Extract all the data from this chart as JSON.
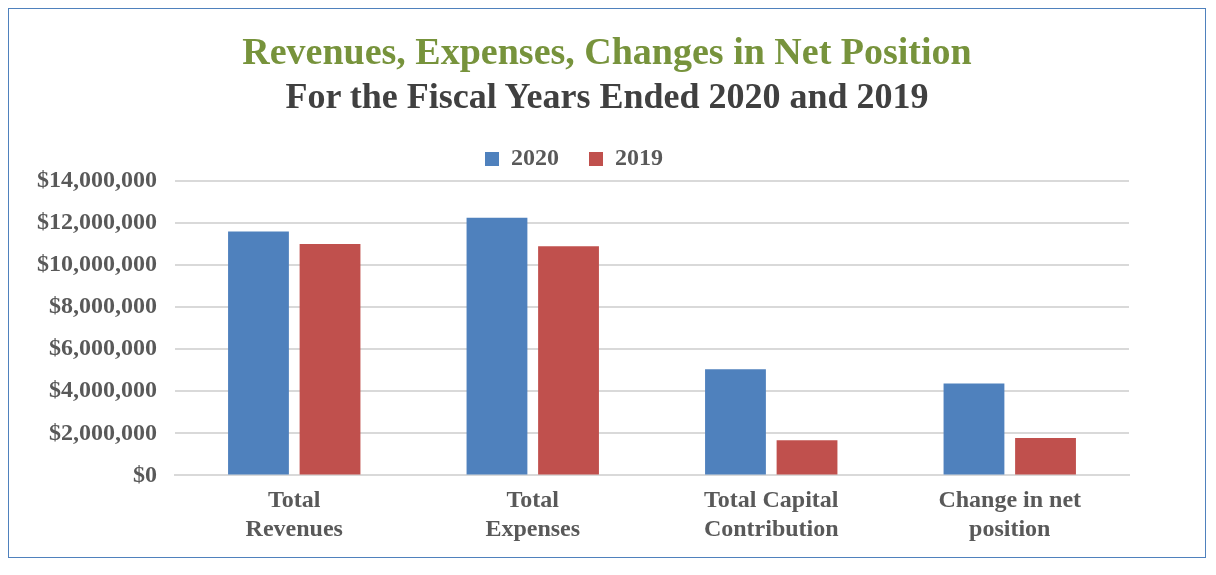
{
  "chart_data": {
    "type": "bar",
    "title": "Revenues, Expenses, Changes in Net Position",
    "subtitle": "For the Fiscal Years Ended 2020 and 2019",
    "categories": [
      "Total Revenues",
      "Total Expenses",
      "Total Capital Contribution",
      "Change in net position"
    ],
    "series": [
      {
        "name": "2020",
        "color": "#4f81bd",
        "values": [
          11600000,
          12250000,
          5050000,
          4370000
        ]
      },
      {
        "name": "2019",
        "color": "#c0504d",
        "values": [
          11000000,
          10900000,
          1670000,
          1780000
        ]
      }
    ],
    "ylim": [
      0,
      14000000
    ],
    "yticks": [
      {
        "value": 0,
        "label": "$0"
      },
      {
        "value": 2000000,
        "label": "$2,000,000"
      },
      {
        "value": 4000000,
        "label": "$4,000,000"
      },
      {
        "value": 6000000,
        "label": "$6,000,000"
      },
      {
        "value": 8000000,
        "label": "$8,000,000"
      },
      {
        "value": 10000000,
        "label": "$10,000,000"
      },
      {
        "value": 12000000,
        "label": "$12,000,000"
      },
      {
        "value": 14000000,
        "label": "$14,000,000"
      }
    ],
    "grid": "y",
    "legend": "top"
  }
}
